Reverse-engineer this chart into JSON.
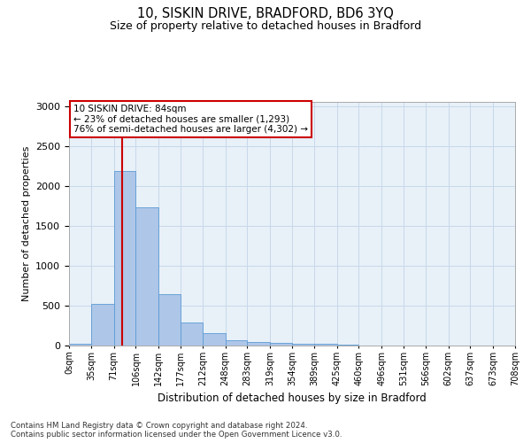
{
  "title": "10, SISKIN DRIVE, BRADFORD, BD6 3YQ",
  "subtitle": "Size of property relative to detached houses in Bradford",
  "xlabel": "Distribution of detached houses by size in Bradford",
  "ylabel": "Number of detached properties",
  "annotation_line1": "10 SISKIN DRIVE: 84sqm",
  "annotation_line2": "← 23% of detached houses are smaller (1,293)",
  "annotation_line3": "76% of semi-detached houses are larger (4,302) →",
  "red_line_x": 84,
  "bin_edges": [
    0,
    35,
    71,
    106,
    142,
    177,
    212,
    248,
    283,
    319,
    354,
    389,
    425,
    460,
    496,
    531,
    566,
    602,
    637,
    673,
    708
  ],
  "bin_labels": [
    "0sqm",
    "35sqm",
    "71sqm",
    "106sqm",
    "142sqm",
    "177sqm",
    "212sqm",
    "248sqm",
    "283sqm",
    "319sqm",
    "354sqm",
    "389sqm",
    "425sqm",
    "460sqm",
    "496sqm",
    "531sqm",
    "566sqm",
    "602sqm",
    "637sqm",
    "673sqm",
    "708sqm"
  ],
  "bar_heights": [
    25,
    520,
    2180,
    1730,
    640,
    290,
    150,
    70,
    45,
    35,
    25,
    20,
    15,
    5,
    3,
    2,
    1,
    1,
    0,
    0
  ],
  "bar_color": "#aec6e8",
  "bar_edge_color": "#5b9bd5",
  "red_line_color": "#cc0000",
  "annotation_box_color": "#cc0000",
  "background_color": "#ffffff",
  "ax_background_color": "#e8f0f8",
  "grid_color": "#c8d8ea",
  "ylim": [
    0,
    3050
  ],
  "yticks": [
    0,
    500,
    1000,
    1500,
    2000,
    2500,
    3000
  ],
  "footer_line1": "Contains HM Land Registry data © Crown copyright and database right 2024.",
  "footer_line2": "Contains public sector information licensed under the Open Government Licence v3.0."
}
